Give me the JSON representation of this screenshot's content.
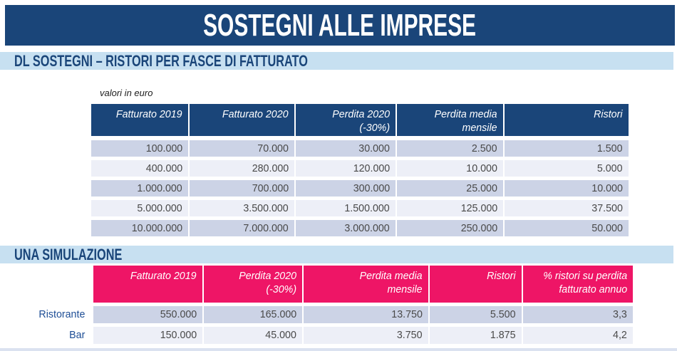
{
  "banner": {
    "title": "SOSTEGNI ALLE IMPRESE"
  },
  "section1": {
    "title": "DL SOSTEGNI – RISTORI PER FASCE DI FATTURATO"
  },
  "section2": {
    "title": "UNA SIMULAZIONE"
  },
  "note": "valori in euro",
  "colors": {
    "navy": "#1a4579",
    "light_blue": "#c7e0f1",
    "pink": "#ee1566",
    "row_dark": "#ccd3e6",
    "row_light": "#edeff7"
  },
  "table1": {
    "headers": [
      "Fatturato 2019",
      "Fatturato 2020",
      "Perdita 2020\n(-30%)",
      "Perdita media\nmensile",
      "Ristori"
    ],
    "rows": [
      [
        "100.000",
        "70.000",
        "30.000",
        "2.500",
        "1.500"
      ],
      [
        "400.000",
        "280.000",
        "120.000",
        "10.000",
        "5.000"
      ],
      [
        "1.000.000",
        "700.000",
        "300.000",
        "25.000",
        "10.000"
      ],
      [
        "5.000.000",
        "3.500.000",
        "1.500.000",
        "125.000",
        "37.500"
      ],
      [
        "10.000.000",
        "7.000.000",
        "3.000.000",
        "250.000",
        "50.000"
      ]
    ]
  },
  "table2": {
    "headers": [
      "Fatturato 2019",
      "Perdita 2020\n(-30%)",
      "Perdita media\nmensile",
      "Ristori",
      "% ristori su perdita\nfatturato annuo"
    ],
    "rows": [
      {
        "label": "Ristorante",
        "values": [
          "550.000",
          "165.000",
          "13.750",
          "5.500",
          "3,3"
        ]
      },
      {
        "label": "Bar",
        "values": [
          "150.000",
          "45.000",
          "3.750",
          "1.875",
          "4,2"
        ]
      }
    ]
  }
}
